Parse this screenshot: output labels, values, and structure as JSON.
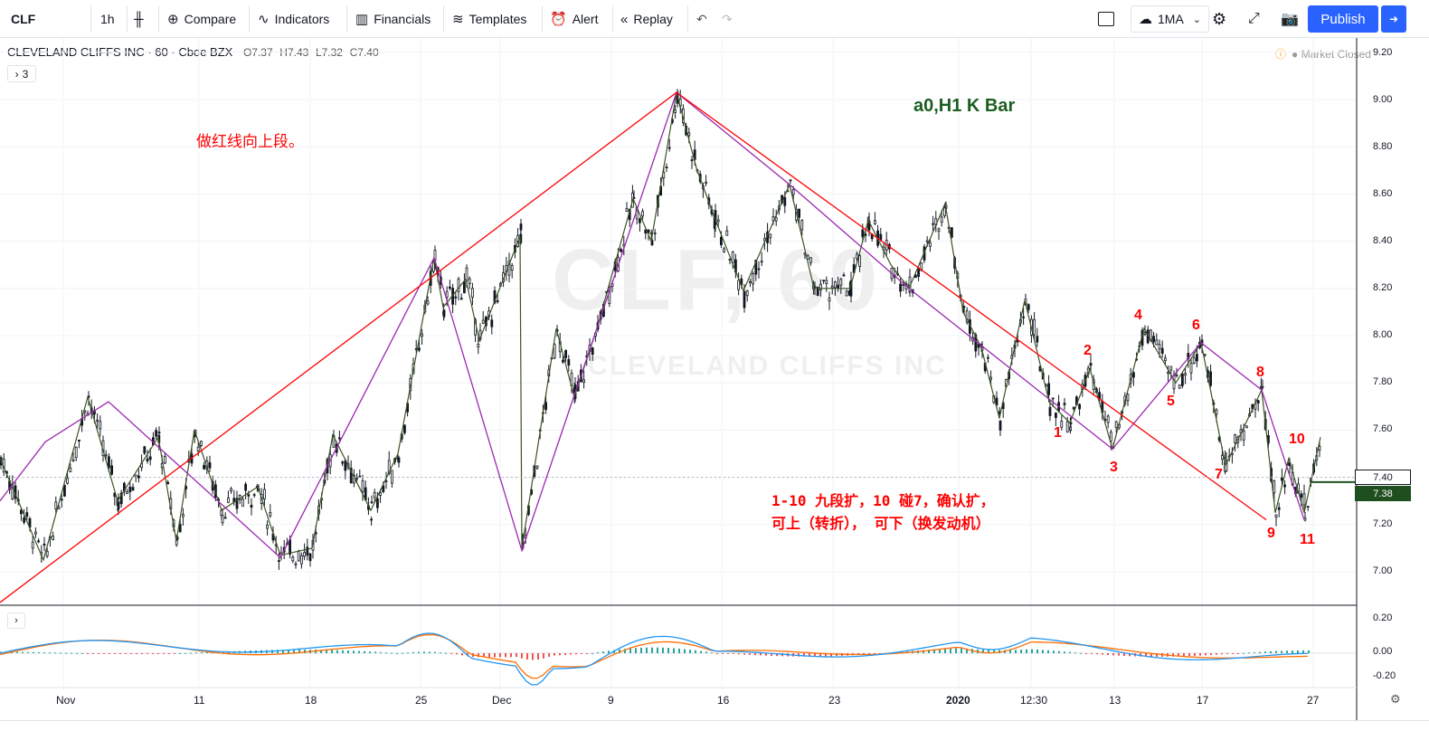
{
  "toolbar": {
    "symbol": "CLF",
    "interval": "1h",
    "compare": "Compare",
    "indicators": "Indicators",
    "financials": "Financials",
    "templates": "Templates",
    "alert": "Alert",
    "replay": "Replay",
    "layout_name": "1MA",
    "publish": "Publish"
  },
  "header": {
    "name": "CLEVELAND CLIFFS INC",
    "sep1": "·",
    "timeframe": "60",
    "sep2": "·",
    "exchange": "Cboe BZX",
    "open": "O7.37",
    "high": "H7.43",
    "low": "L7.32",
    "close": "C7.40",
    "indicator_count": "3",
    "market_status": "Market Closed"
  },
  "watermark": {
    "symbol": "CLF, 60",
    "name": "CLEVELAND CLIFFS INC"
  },
  "annotations": {
    "red_note": "做红线向上段。",
    "green_title": "a0,H1 K Bar",
    "note_line1": "1-10 九段扩，10 碰7，确认扩，",
    "note_line2": "可上（转折）， 可下（换发动机）",
    "wave_numbers": [
      "1",
      "2",
      "3",
      "4",
      "5",
      "6",
      "7",
      "8",
      "9",
      "10",
      "11"
    ]
  },
  "price_axis": {
    "labels": [
      "9.20",
      "9.00",
      "8.80",
      "8.60",
      "8.40",
      "8.20",
      "8.00",
      "7.80",
      "7.60",
      "7.40",
      "7.20",
      "7.00"
    ],
    "last_price": "7.40",
    "current_price": "7.38"
  },
  "indicator_axis": {
    "labels": [
      "0.20",
      "0.00",
      "-0.20"
    ]
  },
  "time_axis": {
    "labels": [
      "Nov",
      "11",
      "18",
      "25",
      "Dec",
      "9",
      "16",
      "23",
      "2020",
      "12:30",
      "13",
      "17",
      "27"
    ]
  },
  "colors": {
    "up": "#ffffff",
    "down": "#131722",
    "red_line": "#ff0000",
    "purple_line": "#9c27b0",
    "zigzag": "#3b5323",
    "accent": "#2962ff",
    "macd_fast": "#2196f3",
    "macd_slow": "#ff6d00",
    "hist_pos": "#26a69a",
    "hist_neg": "#ef5350"
  },
  "icons": [
    "candles-icon",
    "compare-icon",
    "indicators-icon",
    "financials-icon",
    "templates-icon",
    "alert-icon",
    "replay-icon",
    "undo-icon",
    "redo-icon",
    "fullscreen-box-icon",
    "cloud-icon",
    "settings-icon",
    "expand-icon",
    "camera-icon",
    "arrow-right-icon"
  ]
}
